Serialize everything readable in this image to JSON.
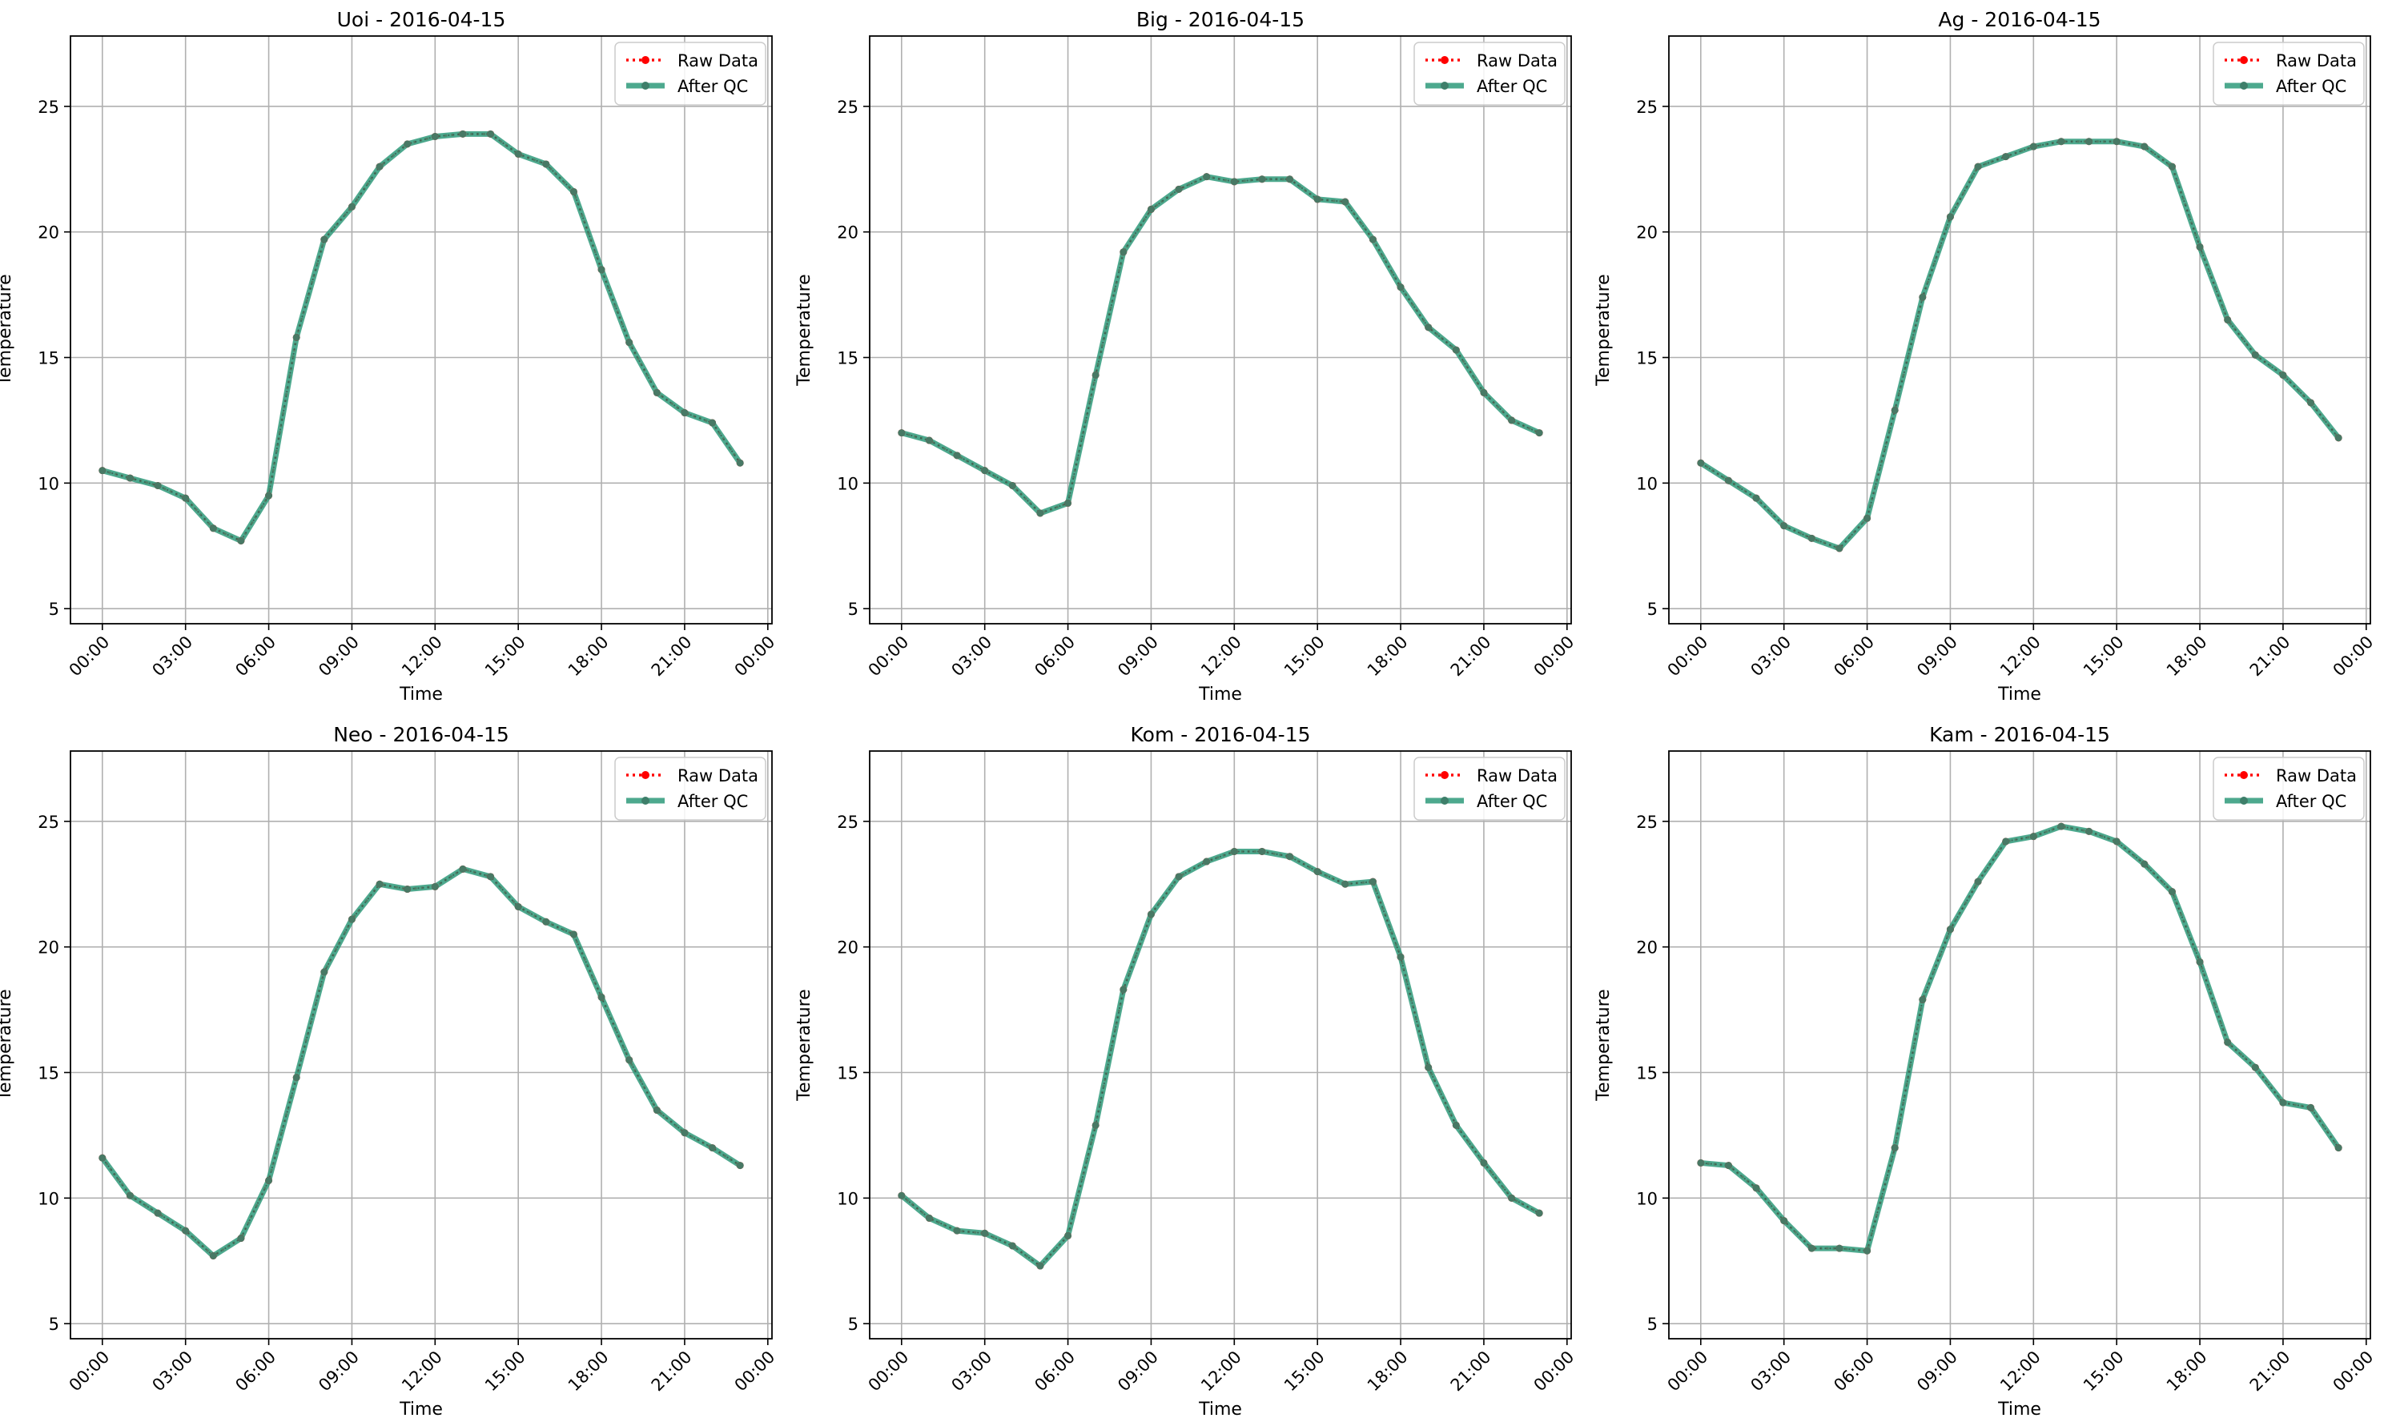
{
  "legend_labels": {
    "raw": "Raw Data",
    "qc": "After QC"
  },
  "colors": {
    "raw": "#ff0000",
    "qc": "#2e9a7a",
    "qc_marker": "#3e7f6a",
    "grid": "#b0b0b0"
  },
  "chart_data": [
    {
      "type": "line",
      "title": "Uoi - 2016-04-15",
      "xlabel": "Time",
      "ylabel": "Temperature",
      "ylim": [
        4.4,
        27.8
      ],
      "yticks": [
        5,
        10,
        15,
        20,
        25
      ],
      "xlim_hours": [
        -1.15,
        24.15
      ],
      "xticks": [
        "00:00",
        "03:00",
        "06:00",
        "09:00",
        "12:00",
        "15:00",
        "18:00",
        "21:00",
        "00:00"
      ],
      "legend_position": "top-right",
      "grid": true,
      "x": [
        "00:00",
        "01:00",
        "02:00",
        "03:00",
        "04:00",
        "05:00",
        "06:00",
        "07:00",
        "08:00",
        "09:00",
        "10:00",
        "11:00",
        "12:00",
        "13:00",
        "14:00",
        "15:00",
        "16:00",
        "17:00",
        "18:00",
        "19:00",
        "20:00",
        "21:00",
        "22:00",
        "23:00"
      ],
      "series": [
        {
          "name": "Raw Data",
          "values": [
            10.5,
            10.2,
            9.9,
            9.4,
            8.2,
            7.7,
            9.5,
            15.8,
            19.7,
            21.0,
            22.6,
            23.5,
            23.8,
            23.9,
            23.9,
            23.1,
            22.7,
            21.6,
            18.5,
            15.6,
            13.6,
            12.8,
            12.4,
            10.8
          ]
        },
        {
          "name": "After QC",
          "values": [
            10.5,
            10.2,
            9.9,
            9.4,
            8.2,
            7.7,
            9.5,
            15.8,
            19.7,
            21.0,
            22.6,
            23.5,
            23.8,
            23.9,
            23.9,
            23.1,
            22.7,
            21.6,
            18.5,
            15.6,
            13.6,
            12.8,
            12.4,
            10.8
          ]
        }
      ]
    },
    {
      "type": "line",
      "title": "Big - 2016-04-15",
      "xlabel": "Time",
      "ylabel": "Temperature",
      "ylim": [
        4.4,
        27.8
      ],
      "yticks": [
        5,
        10,
        15,
        20,
        25
      ],
      "xlim_hours": [
        -1.15,
        24.15
      ],
      "xticks": [
        "00:00",
        "03:00",
        "06:00",
        "09:00",
        "12:00",
        "15:00",
        "18:00",
        "21:00",
        "00:00"
      ],
      "legend_position": "top-right",
      "grid": true,
      "x": [
        "00:00",
        "01:00",
        "02:00",
        "03:00",
        "04:00",
        "05:00",
        "06:00",
        "07:00",
        "08:00",
        "09:00",
        "10:00",
        "11:00",
        "12:00",
        "13:00",
        "14:00",
        "15:00",
        "16:00",
        "17:00",
        "18:00",
        "19:00",
        "20:00",
        "21:00",
        "22:00",
        "23:00"
      ],
      "series": [
        {
          "name": "Raw Data",
          "values": [
            12.0,
            11.7,
            11.1,
            10.5,
            9.9,
            8.8,
            9.2,
            14.3,
            19.2,
            20.9,
            21.7,
            22.2,
            22.0,
            22.1,
            22.1,
            21.3,
            21.2,
            19.7,
            17.8,
            16.2,
            15.3,
            13.6,
            12.5,
            12.0
          ]
        },
        {
          "name": "After QC",
          "values": [
            12.0,
            11.7,
            11.1,
            10.5,
            9.9,
            8.8,
            9.2,
            14.3,
            19.2,
            20.9,
            21.7,
            22.2,
            22.0,
            22.1,
            22.1,
            21.3,
            21.2,
            19.7,
            17.8,
            16.2,
            15.3,
            13.6,
            12.5,
            12.0
          ]
        }
      ]
    },
    {
      "type": "line",
      "title": "Ag - 2016-04-15",
      "xlabel": "Time",
      "ylabel": "Temperature",
      "ylim": [
        4.4,
        27.8
      ],
      "yticks": [
        5,
        10,
        15,
        20,
        25
      ],
      "xlim_hours": [
        -1.15,
        24.15
      ],
      "xticks": [
        "00:00",
        "03:00",
        "06:00",
        "09:00",
        "12:00",
        "15:00",
        "18:00",
        "21:00",
        "00:00"
      ],
      "legend_position": "top-right",
      "grid": true,
      "x": [
        "00:00",
        "01:00",
        "02:00",
        "03:00",
        "04:00",
        "05:00",
        "06:00",
        "07:00",
        "08:00",
        "09:00",
        "10:00",
        "11:00",
        "12:00",
        "13:00",
        "14:00",
        "15:00",
        "16:00",
        "17:00",
        "18:00",
        "19:00",
        "20:00",
        "21:00",
        "22:00",
        "23:00"
      ],
      "series": [
        {
          "name": "Raw Data",
          "values": [
            10.8,
            10.1,
            9.4,
            8.3,
            7.8,
            7.4,
            8.6,
            12.9,
            17.4,
            20.6,
            22.6,
            23.0,
            23.4,
            23.6,
            23.6,
            23.6,
            23.4,
            22.6,
            19.4,
            16.5,
            15.1,
            14.3,
            13.2,
            11.8
          ]
        },
        {
          "name": "After QC",
          "values": [
            10.8,
            10.1,
            9.4,
            8.3,
            7.8,
            7.4,
            8.6,
            12.9,
            17.4,
            20.6,
            22.6,
            23.0,
            23.4,
            23.6,
            23.6,
            23.6,
            23.4,
            22.6,
            19.4,
            16.5,
            15.1,
            14.3,
            13.2,
            11.8
          ]
        }
      ]
    },
    {
      "type": "line",
      "title": "Neo - 2016-04-15",
      "xlabel": "Time",
      "ylabel": "Temperature",
      "ylim": [
        4.4,
        27.8
      ],
      "yticks": [
        5,
        10,
        15,
        20,
        25
      ],
      "xlim_hours": [
        -1.15,
        24.15
      ],
      "xticks": [
        "00:00",
        "03:00",
        "06:00",
        "09:00",
        "12:00",
        "15:00",
        "18:00",
        "21:00",
        "00:00"
      ],
      "legend_position": "top-right",
      "grid": true,
      "x": [
        "00:00",
        "01:00",
        "02:00",
        "03:00",
        "04:00",
        "05:00",
        "06:00",
        "07:00",
        "08:00",
        "09:00",
        "10:00",
        "11:00",
        "12:00",
        "13:00",
        "14:00",
        "15:00",
        "16:00",
        "17:00",
        "18:00",
        "19:00",
        "20:00",
        "21:00",
        "22:00",
        "23:00"
      ],
      "series": [
        {
          "name": "Raw Data",
          "values": [
            11.6,
            10.1,
            9.4,
            8.7,
            7.7,
            8.4,
            10.7,
            14.8,
            19.0,
            21.1,
            22.5,
            22.3,
            22.4,
            23.1,
            22.8,
            21.6,
            21.0,
            20.5,
            18.0,
            15.5,
            13.5,
            12.6,
            12.0,
            11.3
          ]
        },
        {
          "name": "After QC",
          "values": [
            11.6,
            10.1,
            9.4,
            8.7,
            7.7,
            8.4,
            10.7,
            14.8,
            19.0,
            21.1,
            22.5,
            22.3,
            22.4,
            23.1,
            22.8,
            21.6,
            21.0,
            20.5,
            18.0,
            15.5,
            13.5,
            12.6,
            12.0,
            11.3
          ]
        }
      ]
    },
    {
      "type": "line",
      "title": "Kom - 2016-04-15",
      "xlabel": "Time",
      "ylabel": "Temperature",
      "ylim": [
        4.4,
        27.8
      ],
      "yticks": [
        5,
        10,
        15,
        20,
        25
      ],
      "xlim_hours": [
        -1.15,
        24.15
      ],
      "xticks": [
        "00:00",
        "03:00",
        "06:00",
        "09:00",
        "12:00",
        "15:00",
        "18:00",
        "21:00",
        "00:00"
      ],
      "legend_position": "top-right",
      "grid": true,
      "x": [
        "00:00",
        "01:00",
        "02:00",
        "03:00",
        "04:00",
        "05:00",
        "06:00",
        "07:00",
        "08:00",
        "09:00",
        "10:00",
        "11:00",
        "12:00",
        "13:00",
        "14:00",
        "15:00",
        "16:00",
        "17:00",
        "18:00",
        "19:00",
        "20:00",
        "21:00",
        "22:00",
        "23:00"
      ],
      "series": [
        {
          "name": "Raw Data",
          "values": [
            10.1,
            9.2,
            8.7,
            8.6,
            8.1,
            7.3,
            8.5,
            12.9,
            18.3,
            21.3,
            22.8,
            23.4,
            23.8,
            23.8,
            23.6,
            23.0,
            22.5,
            22.6,
            19.6,
            15.2,
            12.9,
            11.4,
            10.0,
            9.4
          ]
        },
        {
          "name": "After QC",
          "values": [
            10.1,
            9.2,
            8.7,
            8.6,
            8.1,
            7.3,
            8.5,
            12.9,
            18.3,
            21.3,
            22.8,
            23.4,
            23.8,
            23.8,
            23.6,
            23.0,
            22.5,
            22.6,
            19.6,
            15.2,
            12.9,
            11.4,
            10.0,
            9.4
          ]
        }
      ]
    },
    {
      "type": "line",
      "title": "Kam - 2016-04-15",
      "xlabel": "Time",
      "ylabel": "Temperature",
      "ylim": [
        4.4,
        27.8
      ],
      "yticks": [
        5,
        10,
        15,
        20,
        25
      ],
      "xlim_hours": [
        -1.15,
        24.15
      ],
      "xticks": [
        "00:00",
        "03:00",
        "06:00",
        "09:00",
        "12:00",
        "15:00",
        "18:00",
        "21:00",
        "00:00"
      ],
      "legend_position": "top-right",
      "grid": true,
      "x": [
        "00:00",
        "01:00",
        "02:00",
        "03:00",
        "04:00",
        "05:00",
        "06:00",
        "07:00",
        "08:00",
        "09:00",
        "10:00",
        "11:00",
        "12:00",
        "13:00",
        "14:00",
        "15:00",
        "16:00",
        "17:00",
        "18:00",
        "19:00",
        "20:00",
        "21:00",
        "22:00",
        "23:00"
      ],
      "series": [
        {
          "name": "Raw Data",
          "values": [
            11.4,
            11.3,
            10.4,
            9.1,
            8.0,
            8.0,
            7.9,
            12.0,
            17.9,
            20.7,
            22.6,
            24.2,
            24.4,
            24.8,
            24.6,
            24.2,
            23.3,
            22.2,
            19.4,
            16.2,
            15.2,
            13.8,
            13.6,
            12.0
          ]
        },
        {
          "name": "After QC",
          "values": [
            11.4,
            11.3,
            10.4,
            9.1,
            8.0,
            8.0,
            7.9,
            12.0,
            17.9,
            20.7,
            22.6,
            24.2,
            24.4,
            24.8,
            24.6,
            24.2,
            23.3,
            22.2,
            19.4,
            16.2,
            15.2,
            13.8,
            13.6,
            12.0
          ]
        }
      ]
    }
  ]
}
